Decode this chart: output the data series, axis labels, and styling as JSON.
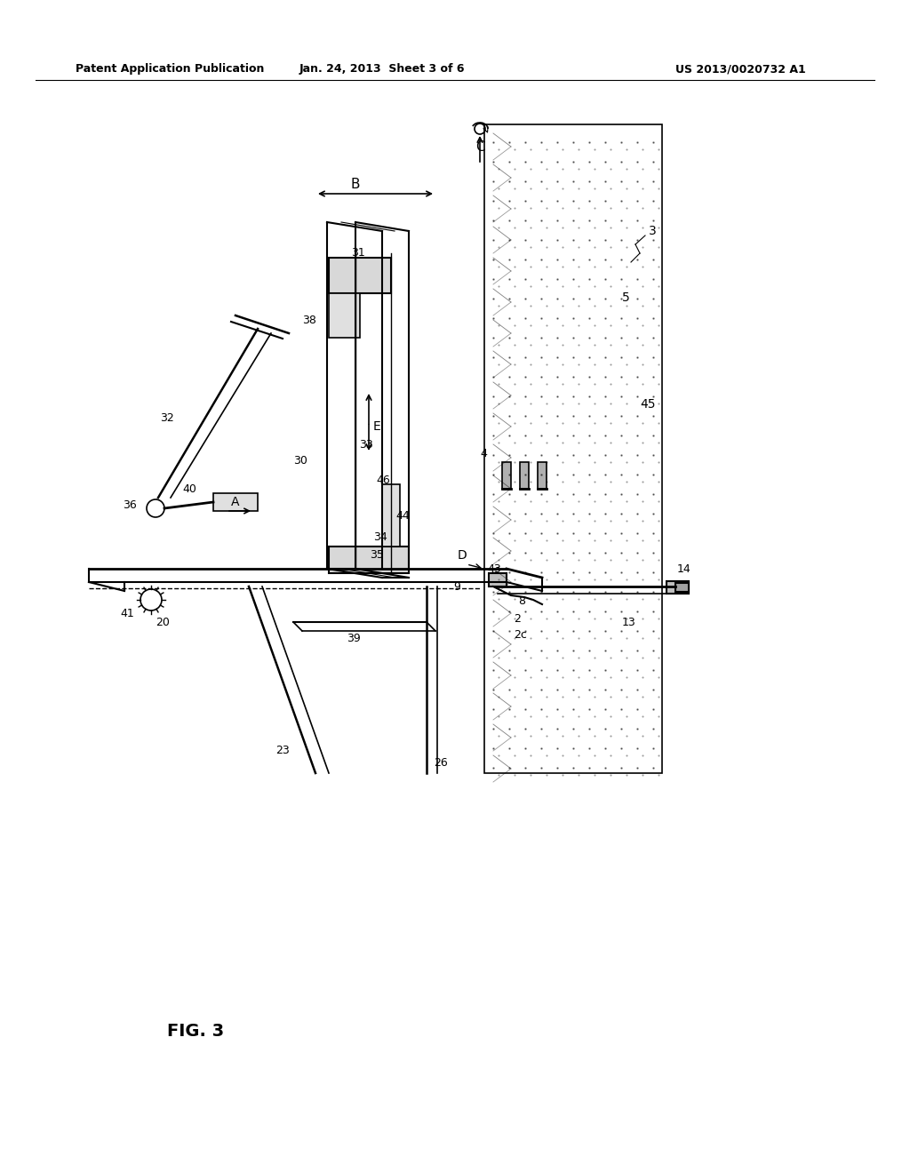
{
  "header_left": "Patent Application Publication",
  "header_center": "Jan. 24, 2013  Sheet 3 of 6",
  "header_right": "US 2013/0020732 A1",
  "figure_label": "FIG. 3",
  "background_color": "#ffffff",
  "line_color": "#000000",
  "fig_width": 10.24,
  "fig_height": 13.2,
  "dpi": 100
}
